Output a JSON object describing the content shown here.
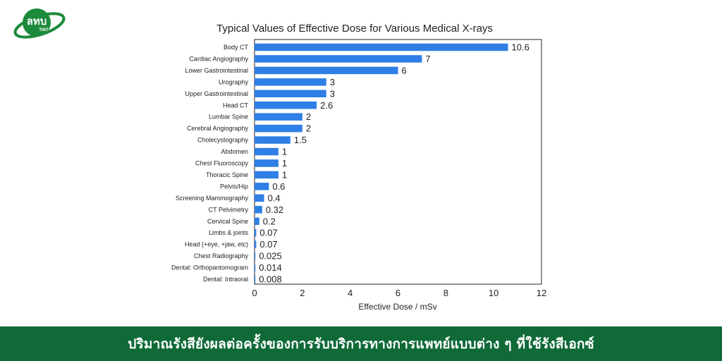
{
  "brand": {
    "logo_text": "ลทบ",
    "logo_subtext": "TINT",
    "colors": {
      "green": "#0f6a37",
      "logo_green": "#1c8a3b"
    }
  },
  "footer": {
    "caption": "ปริมาณรังสียังผลต่อครั้งของการรับบริการทางการแพทย์แบบต่าง ๆ ที่ใช้รังสีเอกซ์"
  },
  "chart_data": {
    "type": "bar",
    "orientation": "horizontal",
    "title": "Typical Values of Effective Dose for Various Medical X-rays",
    "xlabel": "Effective Dose / mSv",
    "ylabel": "",
    "xlim": [
      0,
      12
    ],
    "xticks": [
      0,
      2,
      4,
      6,
      8,
      10,
      12
    ],
    "grid": false,
    "bar_color": "#2f7fe6",
    "categories": [
      "Body CT",
      "Cardiac Angiography",
      "Lower Gastrointestinal",
      "Urography",
      "Upper Gastrointestinal",
      "Head CT",
      "Lumbar Spine",
      "Cerebral Angiography",
      "Cholecystography",
      "Abdomen",
      "Chest Fluoroscopy",
      "Thoracic Spine",
      "Pelvis/Hip",
      "Screening Mammography",
      "CT Pelvimetry",
      "Cervical Spine",
      "Limbs & joints",
      "Head (+eye, +jaw, etc)",
      "Chest Radiography",
      "Dental: Orthopantomogram",
      "Dental: Intraoral"
    ],
    "values": [
      10.6,
      7,
      6,
      3,
      3,
      2.6,
      2,
      2,
      1.5,
      1,
      1,
      1,
      0.6,
      0.4,
      0.32,
      0.2,
      0.07,
      0.07,
      0.025,
      0.014,
      0.008
    ],
    "value_labels": [
      "10.6",
      "7",
      "6",
      "3",
      "3",
      "2.6",
      "2",
      "2",
      "1.5",
      "1",
      "1",
      "1",
      "0.6",
      "0.4",
      "0.32",
      "0.2",
      "0.07",
      "0.07",
      "0.025",
      "0.014",
      "0.008"
    ]
  }
}
